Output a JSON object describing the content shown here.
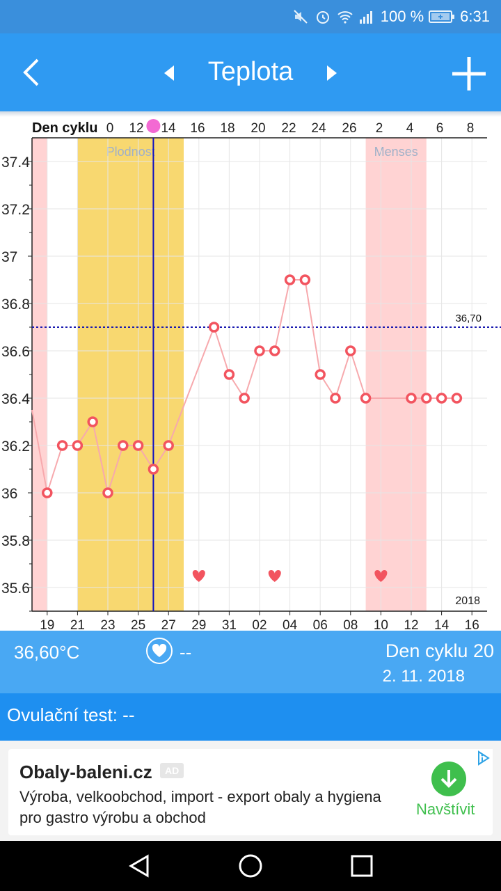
{
  "status_bar": {
    "battery": "100 %",
    "time": "6:31",
    "icons": [
      "mute-icon",
      "alarm-icon",
      "wifi-icon",
      "signal-icon",
      "battery-icon"
    ]
  },
  "app_bar": {
    "title": "Teplota",
    "icons": [
      "back-arrow-icon",
      "prev-triangle-icon",
      "next-triangle-icon",
      "plus-icon"
    ]
  },
  "chart_data": {
    "type": "line",
    "top_axis_label": "Den cyklu",
    "top_ticks": [
      "0",
      "12",
      "14",
      "16",
      "18",
      "20",
      "22",
      "24",
      "26",
      "2",
      "4",
      "6",
      "8"
    ],
    "bottom_ticks": [
      "19",
      "21",
      "23",
      "25",
      "27",
      "29",
      "31",
      "02",
      "04",
      "06",
      "08",
      "10",
      "12",
      "14",
      "16"
    ],
    "y_ticks": [
      "37.4",
      "37.2",
      "37",
      "36.8",
      "36.6",
      "36.4",
      "36.2",
      "36",
      "35.8",
      "35.6"
    ],
    "ylim": [
      35.5,
      37.5
    ],
    "year_label": "2018",
    "threshold": {
      "value": 36.7,
      "label": "36,70",
      "color": "#1a1ab0"
    },
    "bands": [
      {
        "label": "Plodnost",
        "from": 21,
        "to": 28,
        "color": "#f8d870"
      },
      {
        "label": "Menses",
        "from": 40,
        "to": 44,
        "color": "#ffd3d3"
      },
      {
        "label": "",
        "from": 18,
        "to": 19,
        "color": "#ffd3d3"
      }
    ],
    "current_day": 26,
    "x": [
      18,
      19,
      20,
      21,
      22,
      23,
      24,
      25,
      26,
      27,
      30,
      31,
      32,
      33,
      34,
      35,
      36,
      37,
      38,
      39,
      40,
      41,
      42,
      43,
      44,
      45,
      46
    ],
    "values": [
      36.35,
      36.0,
      36.2,
      36.2,
      36.3,
      36.0,
      36.2,
      36.2,
      36.1,
      36.2,
      36.7,
      36.5,
      36.4,
      36.6,
      36.6,
      36.9,
      36.9,
      36.5,
      36.4,
      36.6,
      36.4,
      null,
      null,
      36.4,
      36.4,
      36.4,
      36.4
    ],
    "intercourse_days": [
      29,
      34,
      41
    ],
    "grid": true,
    "line_color": "#f7a9ad",
    "point_color": "#f2545f"
  },
  "info_bar": {
    "temperature": "36,60°C",
    "intercourse": "--",
    "cycle_day": "Den cyklu 20",
    "date": "2. 11. 2018"
  },
  "ovulation": {
    "text": "Ovulační test: --"
  },
  "ad": {
    "title": "Obaly-baleni.cz",
    "badge": "AD",
    "text": "Výroba, velkoobchod, import - export obaly a hygiena pro gastro výrobu a obchod",
    "cta": "Navštívit"
  },
  "nav_bar": {
    "icons": [
      "nav-back-icon",
      "nav-home-icon",
      "nav-recents-icon"
    ]
  }
}
